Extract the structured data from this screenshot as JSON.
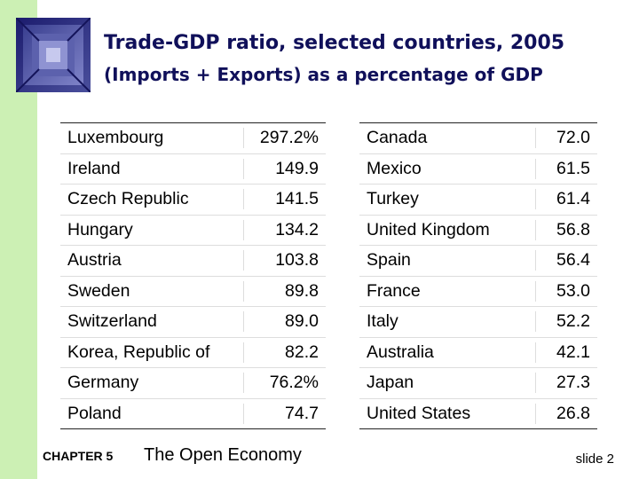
{
  "slide": {
    "title": "Trade-GDP ratio, selected countries, 2005",
    "subtitle": "(Imports + Exports) as a percentage of GDP"
  },
  "table_left": [
    {
      "country": "Luxembourg",
      "value": "297.2%"
    },
    {
      "country": "Ireland",
      "value": "149.9"
    },
    {
      "country": "Czech Republic",
      "value": "141.5"
    },
    {
      "country": "Hungary",
      "value": "134.2"
    },
    {
      "country": "Austria",
      "value": "103.8"
    },
    {
      "country": "Sweden",
      "value": "89.8"
    },
    {
      "country": "Switzerland",
      "value": "89.0"
    },
    {
      "country": "Korea, Republic of",
      "value": "82.2"
    },
    {
      "country": "Germany",
      "value": "76.2%"
    },
    {
      "country": "Poland",
      "value": "74.7"
    }
  ],
  "table_right": [
    {
      "country": "Canada",
      "value": "72.0"
    },
    {
      "country": "Mexico",
      "value": "61.5"
    },
    {
      "country": "Turkey",
      "value": "61.4"
    },
    {
      "country": "United Kingdom",
      "value": "56.8"
    },
    {
      "country": "Spain",
      "value": "56.4"
    },
    {
      "country": "France",
      "value": "53.0"
    },
    {
      "country": "Italy",
      "value": "52.2"
    },
    {
      "country": "Australia",
      "value": "42.1"
    },
    {
      "country": "Japan",
      "value": "27.3"
    },
    {
      "country": "United States",
      "value": "26.8"
    }
  ],
  "footer": {
    "chapter": "CHAPTER 5",
    "title": "The Open Economy",
    "slide": "slide 2"
  },
  "colors": {
    "sidebar": "#ccf0b4",
    "title": "#10105a",
    "logo_dark": "#1c1c6e",
    "logo_light": "#7f83c8"
  },
  "icons": {
    "logo": "tunnel-square-icon"
  }
}
